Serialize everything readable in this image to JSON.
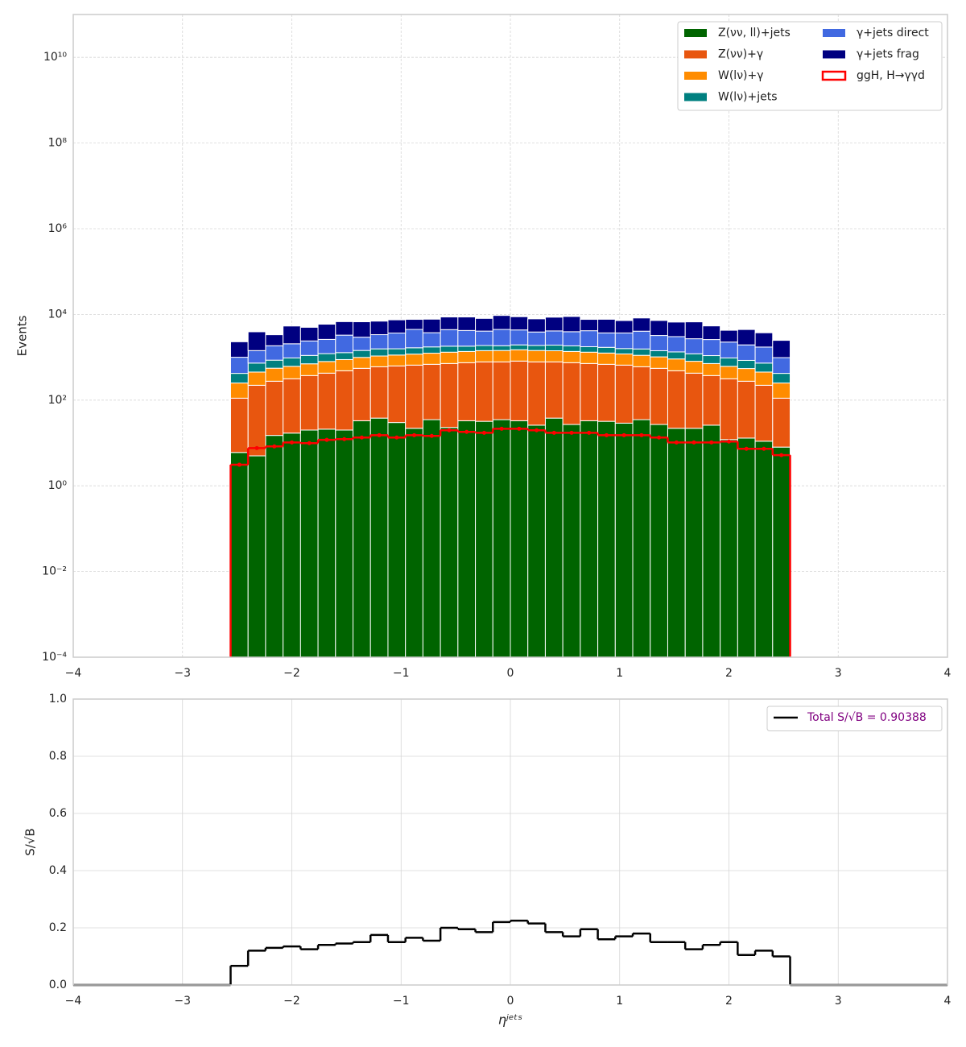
{
  "chart_data": [
    {
      "type": "histogram",
      "stacked": true,
      "yscale": "log",
      "grid": true,
      "legend": "upper right",
      "legend_ncol": 2,
      "ylabel": "Events",
      "bins": [
        -2.56,
        -2.4,
        -2.24,
        -2.08,
        -1.92,
        -1.76,
        -1.6,
        -1.44,
        -1.28,
        -1.12,
        -0.96,
        -0.8,
        -0.64,
        -0.48,
        -0.32,
        -0.16,
        0,
        0.16,
        0.32,
        0.48,
        0.64,
        0.8,
        0.96,
        1.12,
        1.28,
        1.44,
        1.6,
        1.76,
        1.92,
        2.08,
        2.24,
        2.4,
        2.56
      ],
      "xlim": [
        -4,
        4
      ],
      "xticks": [
        {
          "value": -4,
          "label": "−4"
        },
        {
          "value": -3,
          "label": "−3"
        },
        {
          "value": -2,
          "label": "−2"
        },
        {
          "value": -1,
          "label": "−1"
        },
        0,
        1,
        2,
        3,
        4
      ],
      "ylim": [
        0.0001,
        100000000000
      ],
      "yticks": [
        {
          "value": 0.0001,
          "label": "10⁻⁴"
        },
        {
          "value": 0.01,
          "label": "10⁻²"
        },
        {
          "value": 1,
          "label": "10⁰"
        },
        {
          "value": 100,
          "label": "10²"
        },
        {
          "value": 10000,
          "label": "10⁴"
        },
        {
          "value": 1000000,
          "label": "10⁶"
        },
        {
          "value": 100000000,
          "label": "10⁸"
        },
        {
          "value": 10000000000,
          "label": "10¹⁰"
        }
      ],
      "series": [
        {
          "name": "Z(νν, ll)+jets",
          "color": "#006400",
          "values": [
            6,
            5,
            15,
            17,
            20,
            21,
            20,
            33,
            38,
            30,
            22,
            35,
            23,
            33,
            32,
            35,
            33,
            26,
            38,
            27,
            33,
            32,
            29,
            35,
            27,
            22,
            22,
            26,
            12,
            13,
            11,
            8
          ]
        },
        {
          "name": "Z(νν)+γ",
          "color": "#e8560f",
          "values": [
            105,
            217,
            261,
            298,
            354,
            405,
            464,
            519,
            563,
            598,
            634,
            650,
            692,
            714,
            748,
            745,
            782,
            754,
            742,
            720,
            682,
            653,
            627,
            566,
            525,
            462,
            404,
            348,
            303,
            263,
            211,
            103
          ]
        },
        {
          "name": "W(lν)+γ",
          "color": "#ff8c00",
          "values": [
            140,
            230,
            280,
            300,
            330,
            370,
            400,
            440,
            470,
            500,
            530,
            560,
            600,
            620,
            650,
            660,
            680,
            660,
            640,
            620,
            600,
            570,
            540,
            510,
            470,
            430,
            380,
            340,
            300,
            270,
            230,
            140
          ]
        },
        {
          "name": "W(lν)+jets",
          "color": "#008080",
          "values": [
            170,
            280,
            300,
            350,
            400,
            420,
            400,
            450,
            500,
            450,
            480,
            500,
            500,
            450,
            450,
            420,
            450,
            450,
            500,
            480,
            450,
            450,
            400,
            450,
            400,
            420,
            400,
            380,
            350,
            300,
            280,
            170
          ]
        },
        {
          "name": "γ+jets direct",
          "color": "#4169e1",
          "values": [
            580,
            700,
            1000,
            1100,
            1300,
            1400,
            2000,
            1500,
            1800,
            2100,
            2800,
            2000,
            2600,
            2400,
            2200,
            2600,
            2400,
            2000,
            2200,
            2100,
            2400,
            2000,
            2100,
            2500,
            1800,
            1700,
            1500,
            1500,
            1300,
            1100,
            1000,
            560
          ]
        },
        {
          "name": "γ+jets frag",
          "color": "#000080",
          "values": [
            1300,
            2500,
            1500,
            3300,
            2600,
            3300,
            3500,
            3800,
            3600,
            3800,
            3200,
            4000,
            4300,
            4500,
            4000,
            5000,
            4500,
            4000,
            4500,
            5000,
            3500,
            4000,
            3500,
            4200,
            4000,
            3600,
            4000,
            2800,
            2000,
            2500,
            2000,
            1500
          ]
        },
        {
          "name": "ggH, H→γγd",
          "color": "#ff0000",
          "histtype": "step",
          "values": [
            3.1,
            7.6,
            8.3,
            10.3,
            9.9,
            11.8,
            12.3,
            13.4,
            15.2,
            13.4,
            15.2,
            14.6,
            19.8,
            18.1,
            17.3,
            21.5,
            21.5,
            19.8,
            17.3,
            17.3,
            17.3,
            15.2,
            15.2,
            15.2,
            13.4,
            10.3,
            10.3,
            10.3,
            10.8,
            7.3,
            7.3,
            5.2
          ]
        }
      ]
    },
    {
      "type": "histogram",
      "grid": true,
      "legend": "upper right",
      "xlabel": "ηʲᵉᵗˢ",
      "ylabel": "S/√B",
      "bins": [
        -2.56,
        -2.4,
        -2.24,
        -2.08,
        -1.92,
        -1.76,
        -1.6,
        -1.44,
        -1.28,
        -1.12,
        -0.96,
        -0.8,
        -0.64,
        -0.48,
        -0.32,
        -0.16,
        0,
        0.16,
        0.32,
        0.48,
        0.64,
        0.8,
        0.96,
        1.12,
        1.28,
        1.44,
        1.6,
        1.76,
        1.92,
        2.08,
        2.24,
        2.4,
        2.56
      ],
      "xlim": [
        -4,
        4
      ],
      "xticks": [
        {
          "value": -4,
          "label": "−4"
        },
        {
          "value": -3,
          "label": "−3"
        },
        {
          "value": -2,
          "label": "−2"
        },
        {
          "value": -1,
          "label": "−1"
        },
        0,
        1,
        2,
        3,
        4
      ],
      "ylim": [
        0,
        1
      ],
      "yticks": [
        {
          "value": 0,
          "label": "0.0"
        },
        {
          "value": 0.2,
          "label": "0.2"
        },
        {
          "value": 0.4,
          "label": "0.4"
        },
        {
          "value": 0.6,
          "label": "0.6"
        },
        {
          "value": 0.8,
          "label": "0.8"
        },
        {
          "value": 1,
          "label": "1.0"
        }
      ],
      "legend_text_color": "#800080",
      "series": [
        {
          "name": "Total S/√B = 0.90388",
          "color": "#000000",
          "histtype": "step",
          "values": [
            0.067,
            0.12,
            0.13,
            0.135,
            0.125,
            0.14,
            0.145,
            0.15,
            0.175,
            0.15,
            0.165,
            0.155,
            0.2,
            0.195,
            0.185,
            0.22,
            0.225,
            0.215,
            0.185,
            0.17,
            0.195,
            0.16,
            0.17,
            0.18,
            0.15,
            0.15,
            0.125,
            0.14,
            0.15,
            0.105,
            0.12,
            0.1
          ]
        }
      ]
    }
  ]
}
